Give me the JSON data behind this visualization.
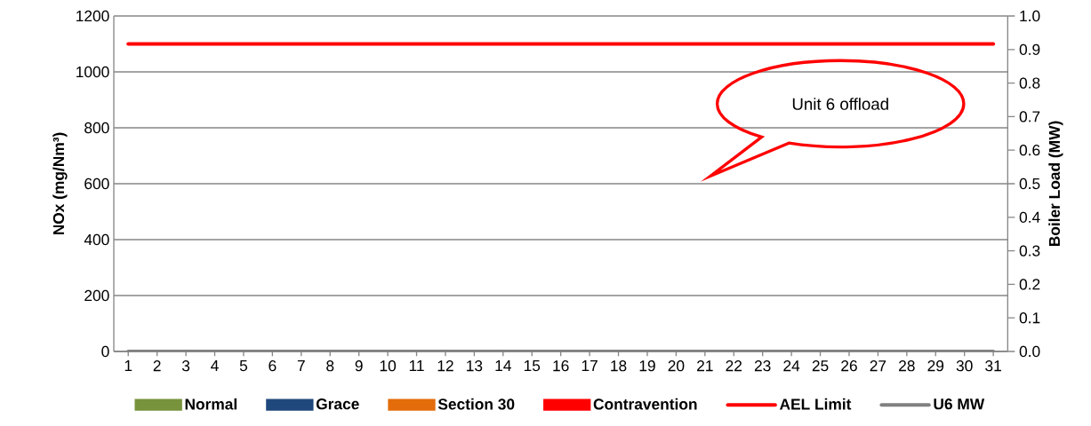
{
  "chart_data": {
    "type": "bar",
    "ylabel": "NOx (mg/Nm³)",
    "y2label": "Boiler Load (MW)",
    "categories": [
      "1",
      "2",
      "3",
      "4",
      "5",
      "6",
      "7",
      "8",
      "9",
      "10",
      "11",
      "12",
      "13",
      "14",
      "15",
      "16",
      "17",
      "18",
      "19",
      "20",
      "21",
      "22",
      "23",
      "24",
      "25",
      "26",
      "27",
      "28",
      "29",
      "30",
      "31"
    ],
    "ylim": [
      0,
      1200
    ],
    "yticks": [
      0,
      200,
      400,
      600,
      800,
      1000,
      1200
    ],
    "y2lim": [
      0,
      1
    ],
    "y2ticks": [
      {
        "value": 0,
        "label": "0.0"
      },
      {
        "value": 0.1,
        "label": "0.1"
      },
      {
        "value": 0.2,
        "label": "0.2"
      },
      {
        "value": 0.3,
        "label": "0.3"
      },
      {
        "value": 0.4,
        "label": "0.4"
      },
      {
        "value": 0.5,
        "label": "0.5"
      },
      {
        "value": 0.6,
        "label": "0.6"
      },
      {
        "value": 0.7,
        "label": "0.7"
      },
      {
        "value": 0.8,
        "label": "0.8"
      },
      {
        "value": 0.9,
        "label": "0.9"
      },
      {
        "value": 1,
        "label": "1.0"
      }
    ],
    "grid": "y",
    "legend": "bottom",
    "annotations": [
      "Unit 6 offload"
    ],
    "series": [
      {
        "name": "Normal",
        "color": "#77933c",
        "values": [
          0,
          0,
          0,
          0,
          0,
          0,
          0,
          0,
          0,
          0,
          0,
          0,
          0,
          0,
          0,
          0,
          0,
          0,
          0,
          0,
          0,
          0,
          0,
          0,
          0,
          0,
          0,
          0,
          0,
          0,
          0
        ]
      },
      {
        "name": "Grace",
        "color": "#1f497d",
        "values": [
          0,
          0,
          0,
          0,
          0,
          0,
          0,
          0,
          0,
          0,
          0,
          0,
          0,
          0,
          0,
          0,
          0,
          0,
          0,
          0,
          0,
          0,
          0,
          0,
          0,
          0,
          0,
          0,
          0,
          0,
          0
        ]
      },
      {
        "name": "Section 30",
        "color": "#e46c0a",
        "values": [
          0,
          0,
          0,
          0,
          0,
          0,
          0,
          0,
          0,
          0,
          0,
          0,
          0,
          0,
          0,
          0,
          0,
          0,
          0,
          0,
          0,
          0,
          0,
          0,
          0,
          0,
          0,
          0,
          0,
          0,
          0
        ]
      },
      {
        "name": "Contravention",
        "color": "#ff0000",
        "values": [
          0,
          0,
          0,
          0,
          0,
          0,
          0,
          0,
          0,
          0,
          0,
          0,
          0,
          0,
          0,
          0,
          0,
          0,
          0,
          0,
          0,
          0,
          0,
          0,
          0,
          0,
          0,
          0,
          0,
          0,
          0
        ]
      },
      {
        "name": "AEL Limit",
        "type": "line",
        "color": "#ff0000",
        "values": [
          1100,
          1100,
          1100,
          1100,
          1100,
          1100,
          1100,
          1100,
          1100,
          1100,
          1100,
          1100,
          1100,
          1100,
          1100,
          1100,
          1100,
          1100,
          1100,
          1100,
          1100,
          1100,
          1100,
          1100,
          1100,
          1100,
          1100,
          1100,
          1100,
          1100,
          1100
        ]
      },
      {
        "name": "U6 MW",
        "type": "line",
        "axis": "y2",
        "color": "#808080",
        "values": [
          0,
          0,
          0,
          0,
          0,
          0,
          0,
          0,
          0,
          0,
          0,
          0,
          0,
          0,
          0,
          0,
          0,
          0,
          0,
          0,
          0,
          0,
          0,
          0,
          0,
          0,
          0,
          0,
          0,
          0,
          0
        ]
      }
    ]
  }
}
